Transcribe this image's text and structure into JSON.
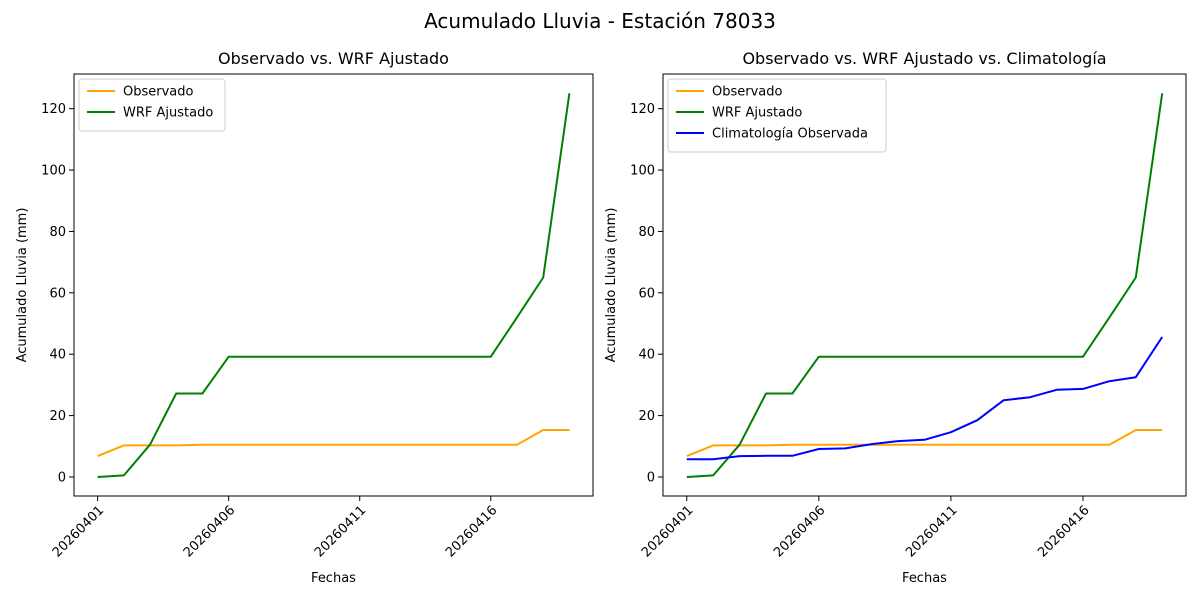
{
  "suptitle": "Acumulado Lluvia - Estación 78033",
  "chart_data": [
    {
      "type": "line",
      "title": "Observado vs. WRF Ajustado",
      "xlabel": "Fechas",
      "ylabel": "Acumulado Lluvia (mm)",
      "x": [
        "20260401",
        "20260402",
        "20260403",
        "20260404",
        "20260405",
        "20260406",
        "20260407",
        "20260408",
        "20260409",
        "20260410",
        "20260411",
        "20260412",
        "20260413",
        "20260414",
        "20260415",
        "20260416",
        "20260417",
        "20260418",
        "20260419"
      ],
      "xticks": [
        "20260401",
        "20260406",
        "20260411",
        "20260416"
      ],
      "yticks": [
        0,
        20,
        40,
        60,
        80,
        100,
        120
      ],
      "ylim": [
        -6.2,
        131.3
      ],
      "grid": false,
      "legend_position": "upper-left",
      "series": [
        {
          "name": "Observado",
          "color": "#ffa500",
          "values": [
            6.8,
            10.3,
            10.3,
            10.3,
            10.5,
            10.5,
            10.5,
            10.5,
            10.5,
            10.5,
            10.5,
            10.5,
            10.5,
            10.5,
            10.5,
            10.5,
            10.5,
            15.3,
            15.3
          ]
        },
        {
          "name": "WRF Ajustado",
          "color": "#008000",
          "values": [
            0.0,
            0.5,
            10.5,
            27.2,
            27.2,
            39.2,
            39.2,
            39.2,
            39.2,
            39.2,
            39.2,
            39.2,
            39.2,
            39.2,
            39.2,
            39.2,
            52.0,
            65.0,
            125.0
          ]
        }
      ]
    },
    {
      "type": "line",
      "title": "Observado vs. WRF Ajustado vs. Climatología",
      "xlabel": "Fechas",
      "ylabel": "Acumulado Lluvia (mm)",
      "x": [
        "20260401",
        "20260402",
        "20260403",
        "20260404",
        "20260405",
        "20260406",
        "20260407",
        "20260408",
        "20260409",
        "20260410",
        "20260411",
        "20260412",
        "20260413",
        "20260414",
        "20260415",
        "20260416",
        "20260417",
        "20260418",
        "20260419"
      ],
      "xticks": [
        "20260401",
        "20260406",
        "20260411",
        "20260416"
      ],
      "yticks": [
        0,
        20,
        40,
        60,
        80,
        100,
        120
      ],
      "ylim": [
        -6.2,
        131.3
      ],
      "grid": false,
      "legend_position": "upper-left",
      "series": [
        {
          "name": "Observado",
          "color": "#ffa500",
          "values": [
            6.8,
            10.3,
            10.3,
            10.3,
            10.5,
            10.5,
            10.5,
            10.5,
            10.5,
            10.5,
            10.5,
            10.5,
            10.5,
            10.5,
            10.5,
            10.5,
            10.5,
            15.3,
            15.3
          ]
        },
        {
          "name": "WRF Ajustado",
          "color": "#008000",
          "values": [
            0.0,
            0.5,
            10.5,
            27.2,
            27.2,
            39.2,
            39.2,
            39.2,
            39.2,
            39.2,
            39.2,
            39.2,
            39.2,
            39.2,
            39.2,
            39.2,
            52.0,
            65.0,
            125.0
          ]
        },
        {
          "name": "Climatología Observada",
          "color": "#0000ff",
          "values": [
            5.8,
            5.8,
            6.8,
            6.9,
            6.9,
            9.1,
            9.3,
            10.7,
            11.7,
            12.1,
            14.6,
            18.5,
            25.0,
            26.0,
            28.4,
            28.7,
            31.2,
            32.5,
            45.6
          ]
        }
      ]
    }
  ]
}
